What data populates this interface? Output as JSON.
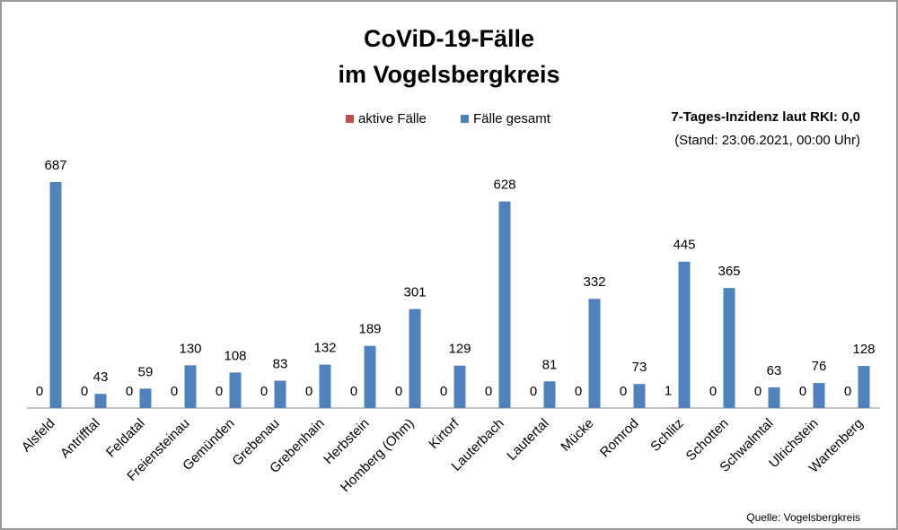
{
  "chart_data": {
    "type": "bar",
    "title": [
      "CoViD-19-Fälle",
      "im Vogelsbergkreis"
    ],
    "annotations": [
      "7-Tages-Inzidenz laut RKI: 0,0",
      "(Stand: 23.06.2021, 00:00 Uhr)"
    ],
    "source": "Quelle: Vogelsbergkreis",
    "categories": [
      "Alsfeld",
      "Antrifftal",
      "Feldatal",
      "Freiensteinau",
      "Gemünden",
      "Grebenau",
      "Grebenhain",
      "Herbstein",
      "Homberg (Ohm)",
      "Kirtorf",
      "Lauterbach",
      "Lautertal",
      "Mücke",
      "Romrod",
      "Schlitz",
      "Schotten",
      "Schwalmtal",
      "Ulrichstein",
      "Wartenberg"
    ],
    "series": [
      {
        "name": "aktive Fälle",
        "color": "#c0504d",
        "values": [
          0,
          0,
          0,
          0,
          0,
          0,
          0,
          0,
          0,
          0,
          0,
          0,
          0,
          0,
          1,
          0,
          0,
          0,
          0
        ]
      },
      {
        "name": "Fälle gesamt",
        "color": "#4f81bd",
        "values": [
          687,
          43,
          59,
          130,
          108,
          83,
          132,
          189,
          301,
          129,
          628,
          81,
          332,
          73,
          445,
          365,
          63,
          76,
          128
        ]
      }
    ],
    "legend": "top"
  }
}
